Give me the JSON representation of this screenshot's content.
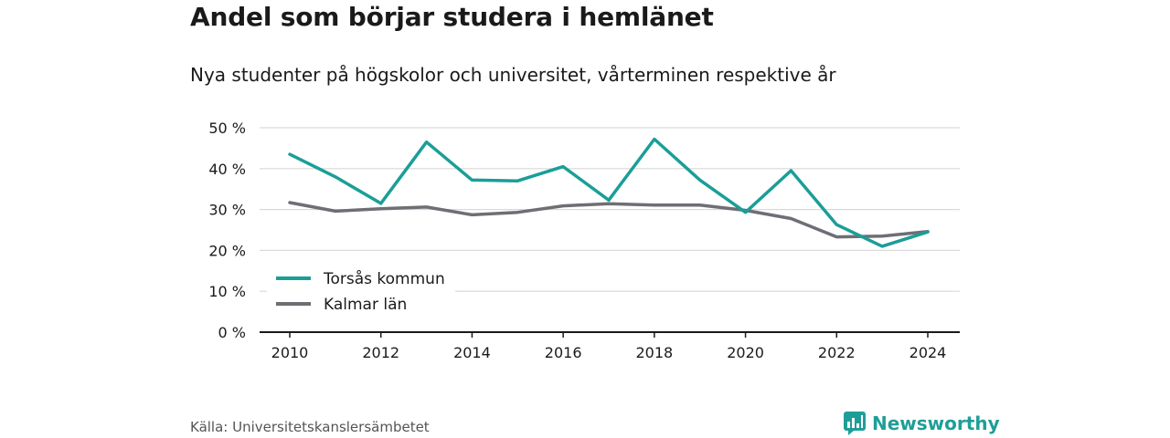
{
  "title": "Andel som börjar studera i hemlänet",
  "subtitle": "Nya studenter på högskolor och universitet, vårterminen respektive år",
  "source": "Källa: Universitetskanslersämbetet",
  "brand": "Newsworthy",
  "colors": {
    "torsas": "#1a9e98",
    "kalmar": "#6e6e74",
    "grid": "#d9d9d9",
    "axis": "#1a1a1a",
    "brand": "#1f9e98"
  },
  "chart_data": {
    "type": "line",
    "x": [
      2010,
      2011,
      2012,
      2013,
      2014,
      2015,
      2016,
      2017,
      2018,
      2019,
      2020,
      2021,
      2022,
      2023,
      2024
    ],
    "xticks": [
      "2010",
      "2012",
      "2014",
      "2016",
      "2018",
      "2020",
      "2022",
      "2024"
    ],
    "yticks": [
      "0 %",
      "10 %",
      "20 %",
      "30 %",
      "40 %",
      "50 %"
    ],
    "ylim": [
      0,
      50
    ],
    "grid": true,
    "legend": "bottom-left",
    "series": [
      {
        "name": "Torsås kommun",
        "color": "#1a9e98",
        "values": [
          43.5,
          38.0,
          31.5,
          46.5,
          37.2,
          37.0,
          40.5,
          32.3,
          47.2,
          37.2,
          29.3,
          39.5,
          26.3,
          21.0,
          24.5
        ]
      },
      {
        "name": "Kalmar län",
        "color": "#6e6e74",
        "values": [
          31.7,
          29.6,
          30.2,
          30.6,
          28.7,
          29.3,
          30.9,
          31.4,
          31.1,
          31.1,
          29.8,
          27.8,
          23.3,
          23.5,
          24.6
        ]
      }
    ]
  }
}
